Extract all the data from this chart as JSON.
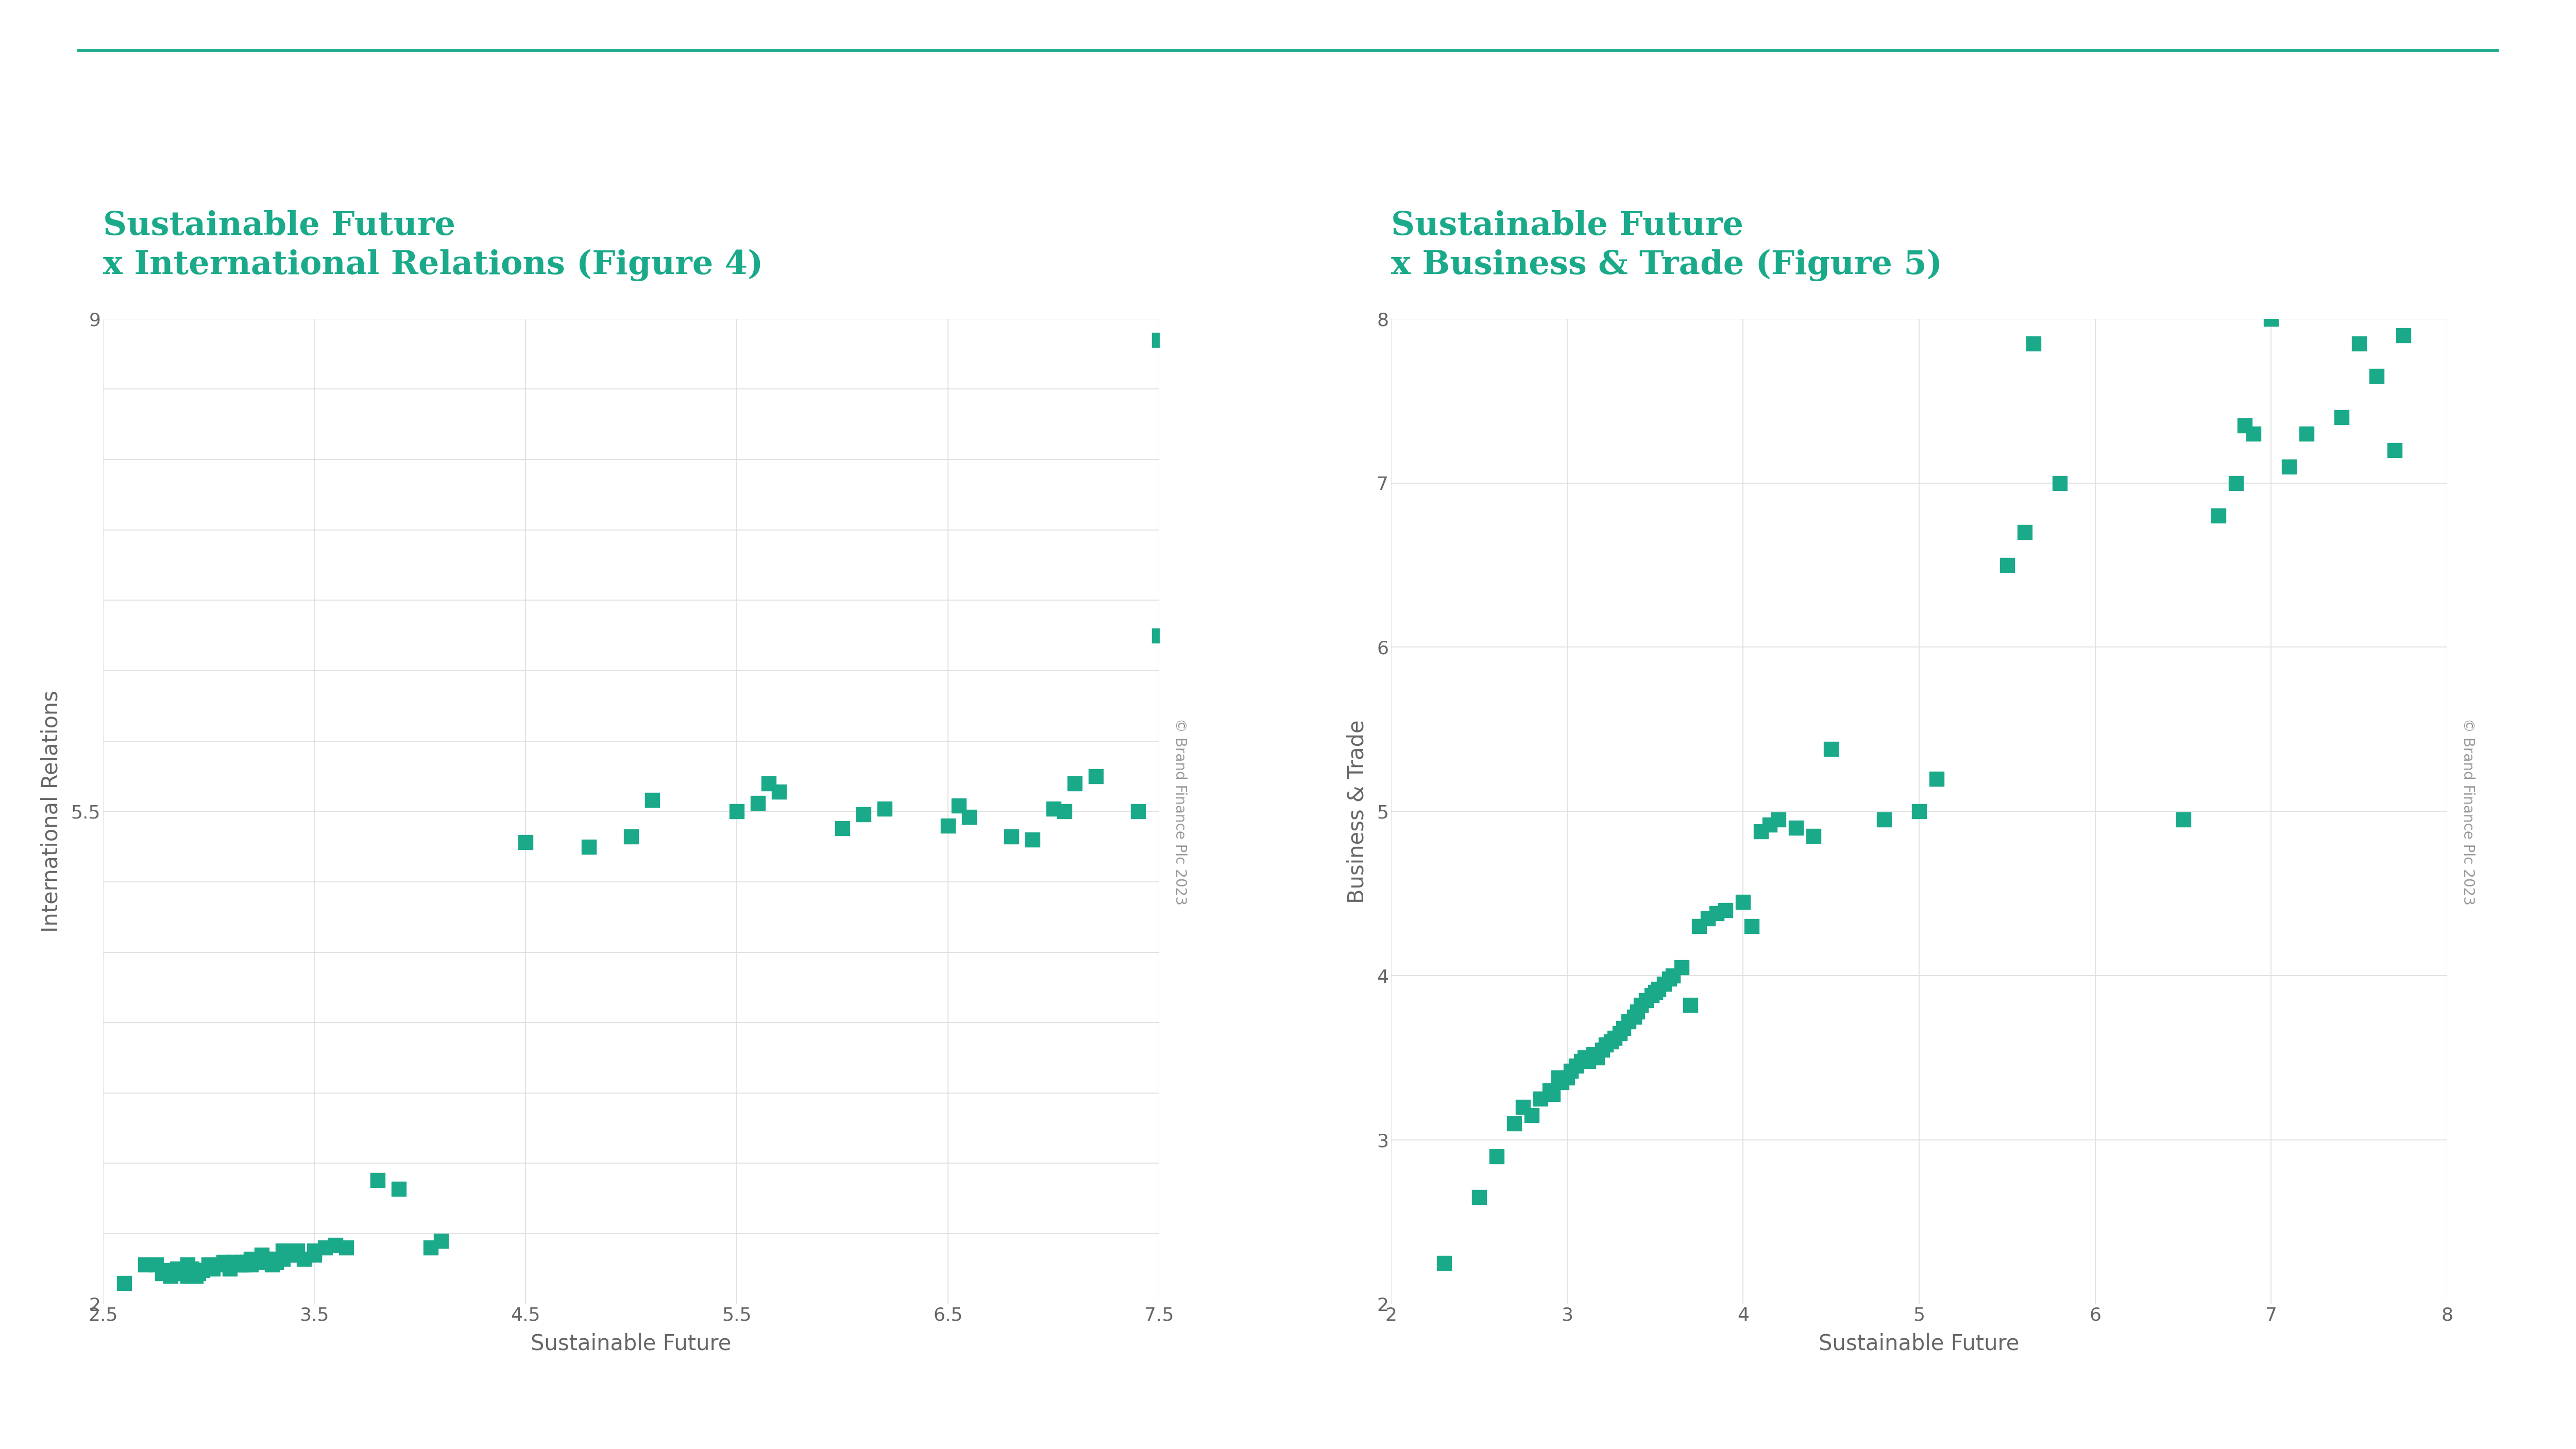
{
  "fig4_title_line1": "Sustainable Future ",
  "fig4_title_line2": "x International Relations (Figure 4)",
  "fig5_title_line1": "Sustainable Future ",
  "fig5_title_line2": "x Business & Trade (Figure 5)",
  "fig4_xlabel": "Sustainable Future",
  "fig4_ylabel": "International Relations",
  "fig5_xlabel": "Sustainable Future",
  "fig5_ylabel": "Business & Trade",
  "title_color": "#1aaa8a",
  "marker_color": "#1aaa8a",
  "axis_label_color": "#666666",
  "tick_color": "#666666",
  "grid_color": "#dddddd",
  "background_color": "#ffffff",
  "copyright_text": "© Brand Finance Plc 2023",
  "copyright_color": "#999999",
  "top_line_color": "#1aaa8a",
  "fig4_xlim": [
    2.5,
    7.5
  ],
  "fig4_ylim": [
    2.0,
    9.0
  ],
  "fig4_xticks": [
    2.5,
    3.5,
    4.5,
    5.5,
    6.5,
    7.5
  ],
  "fig4_yticks": [
    2.0,
    2.5,
    3.0,
    3.5,
    4.0,
    4.5,
    5.0,
    5.5,
    6.0,
    6.5,
    7.0,
    7.5,
    8.0,
    8.5,
    9.0
  ],
  "fig4_xtick_labels": [
    "2.5",
    "3.5",
    "4.5",
    "5.5",
    "6.5",
    "7.5"
  ],
  "fig4_ytick_labels": [
    "2",
    "",
    "",
    "",
    "",
    "",
    "",
    "5.5",
    "",
    "",
    "",
    "",
    "",
    "",
    "9"
  ],
  "fig5_xlim": [
    2.0,
    8.0
  ],
  "fig5_ylim": [
    2.0,
    8.0
  ],
  "fig5_xticks": [
    2.0,
    3.0,
    4.0,
    5.0,
    6.0,
    7.0,
    8.0
  ],
  "fig5_yticks": [
    2.0,
    3.0,
    4.0,
    5.0,
    6.0,
    7.0,
    8.0
  ],
  "fig5_xtick_labels": [
    "2",
    "3",
    "4",
    "5",
    "6",
    "7",
    "8"
  ],
  "fig5_ytick_labels": [
    "2",
    "3",
    "4",
    "5",
    "6",
    "7",
    "8"
  ],
  "fig4_x": [
    2.6,
    2.7,
    2.75,
    2.78,
    2.8,
    2.82,
    2.85,
    2.88,
    2.9,
    2.9,
    2.92,
    2.94,
    2.95,
    2.97,
    3.0,
    3.02,
    3.05,
    3.07,
    3.1,
    3.1,
    3.12,
    3.14,
    3.15,
    3.15,
    3.17,
    3.18,
    3.2,
    3.2,
    3.22,
    3.25,
    3.25,
    3.27,
    3.3,
    3.3,
    3.32,
    3.35,
    3.35,
    3.38,
    3.4,
    3.42,
    3.45,
    3.5,
    3.5,
    3.55,
    3.6,
    3.65,
    3.8,
    3.9,
    4.05,
    4.1,
    4.5,
    4.8,
    5.0,
    5.1,
    5.5,
    5.6,
    5.65,
    5.7,
    6.0,
    6.1,
    6.2,
    6.5,
    6.55,
    6.6,
    6.8,
    6.9,
    7.0,
    7.05,
    7.1,
    7.2,
    7.4,
    7.5,
    7.5
  ],
  "fig4_y": [
    2.15,
    2.28,
    2.28,
    2.22,
    2.24,
    2.2,
    2.25,
    2.22,
    2.2,
    2.28,
    2.25,
    2.2,
    2.22,
    2.24,
    2.28,
    2.25,
    2.28,
    2.3,
    2.28,
    2.25,
    2.3,
    2.28,
    2.28,
    2.3,
    2.28,
    2.3,
    2.28,
    2.32,
    2.3,
    2.3,
    2.35,
    2.32,
    2.28,
    2.32,
    2.3,
    2.32,
    2.38,
    2.35,
    2.35,
    2.38,
    2.32,
    2.38,
    2.35,
    2.4,
    2.42,
    2.4,
    2.88,
    2.82,
    2.4,
    2.45,
    5.28,
    5.25,
    5.32,
    5.58,
    5.5,
    5.56,
    5.7,
    5.64,
    5.38,
    5.48,
    5.52,
    5.4,
    5.54,
    5.46,
    5.32,
    5.3,
    5.52,
    5.5,
    5.7,
    5.75,
    5.5,
    8.85,
    6.75
  ],
  "fig5_x": [
    2.3,
    2.5,
    2.6,
    2.7,
    2.75,
    2.8,
    2.85,
    2.9,
    2.92,
    2.95,
    2.97,
    3.0,
    3.02,
    3.05,
    3.08,
    3.1,
    3.12,
    3.15,
    3.17,
    3.2,
    3.22,
    3.25,
    3.27,
    3.3,
    3.32,
    3.35,
    3.38,
    3.4,
    3.42,
    3.45,
    3.48,
    3.5,
    3.52,
    3.55,
    3.58,
    3.6,
    3.65,
    3.7,
    3.75,
    3.8,
    3.85,
    3.9,
    4.0,
    4.05,
    4.1,
    4.15,
    4.2,
    4.3,
    4.4,
    4.5,
    4.8,
    5.0,
    5.1,
    5.5,
    5.6,
    5.65,
    5.8,
    6.5,
    6.7,
    6.8,
    6.85,
    6.9,
    7.0,
    7.1,
    7.2,
    7.4,
    7.5,
    7.6,
    7.7,
    7.75
  ],
  "fig5_y": [
    2.25,
    2.65,
    2.9,
    3.1,
    3.2,
    3.15,
    3.25,
    3.3,
    3.28,
    3.38,
    3.35,
    3.38,
    3.42,
    3.45,
    3.48,
    3.5,
    3.48,
    3.52,
    3.5,
    3.55,
    3.58,
    3.6,
    3.62,
    3.65,
    3.68,
    3.72,
    3.75,
    3.78,
    3.82,
    3.85,
    3.88,
    3.9,
    3.92,
    3.95,
    3.98,
    4.0,
    4.05,
    3.82,
    4.3,
    4.35,
    4.38,
    4.4,
    4.45,
    4.3,
    4.88,
    4.92,
    4.95,
    4.9,
    4.85,
    5.38,
    4.95,
    5.0,
    5.2,
    6.5,
    6.7,
    7.85,
    7.0,
    4.95,
    6.8,
    7.0,
    7.35,
    7.3,
    8.0,
    7.1,
    7.3,
    7.4,
    7.85,
    7.65,
    7.2,
    7.9
  ]
}
